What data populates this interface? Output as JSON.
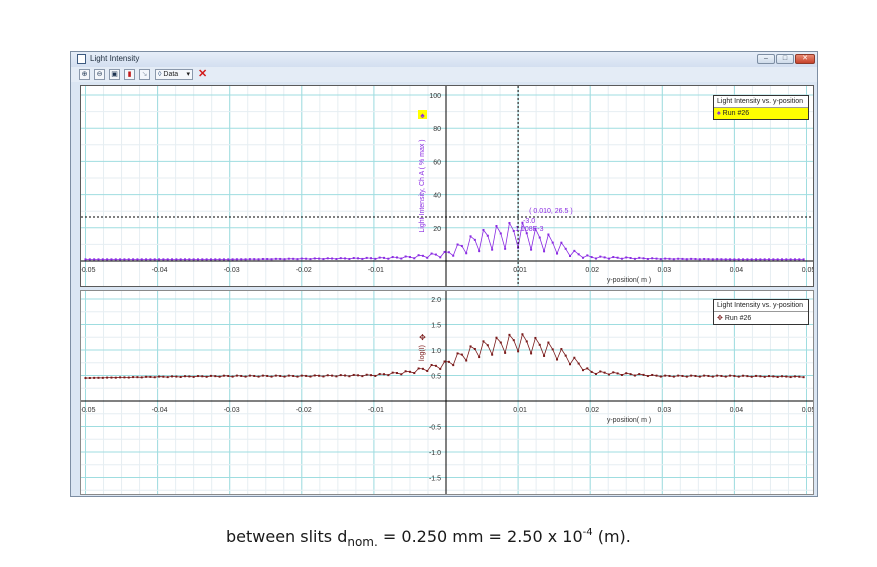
{
  "window": {
    "title": "Light Intensity",
    "controls": {
      "minimize": "–",
      "maximize": "□",
      "close": "✕"
    }
  },
  "toolbar": {
    "buttons": [
      {
        "name": "zoom-in",
        "glyph": "⊕"
      },
      {
        "name": "zoom-out",
        "glyph": "⊖"
      },
      {
        "name": "zoom-select",
        "glyph": "▣"
      },
      {
        "name": "statistics",
        "glyph": "▮"
      },
      {
        "name": "examine",
        "glyph": "↘"
      }
    ],
    "data_label": "Data",
    "data_arrow": "▾",
    "delete_glyph": "✕"
  },
  "top_plot": {
    "legend_title": "Light Intensity vs. y-position",
    "legend_run": "Run #26",
    "legend_run_bg": "#ffff00",
    "ylabel": "Light Intensity, Ch A ( % max )",
    "xlabel": "y-position( m )",
    "cursor_coord": "( 0.010, 26.5 )",
    "delta_label": "-3.0",
    "delta_value": "1.108E-3",
    "series_color": "#8a2be2"
  },
  "bottom_plot": {
    "legend_title": "Light Intensity vs. y-position",
    "legend_run": "Run #26",
    "ylabel": "log(I)",
    "xlabel": "y-position( m )",
    "series_color": "#7a1a1a"
  },
  "chart_data": [
    {
      "type": "line",
      "title": "Light Intensity vs. y-position",
      "xlabel": "y-position( m )",
      "ylabel": "Light Intensity, Ch A ( % max )",
      "xlim": [
        -0.05,
        0.05
      ],
      "ylim": [
        0,
        100
      ],
      "x_ticks": [
        "-0.05",
        "-0.04",
        "-0.03",
        "-0.02",
        "-0.01",
        "0.01",
        "0.02",
        "0.03",
        "0.04",
        "0.05"
      ],
      "y_ticks": [
        "20",
        "40",
        "60",
        "80",
        "100"
      ],
      "grid": true,
      "legend": [
        "Run #26"
      ],
      "annotations": [
        "( 0.010, 26.5 )",
        "-3.0",
        "1.108E-3"
      ],
      "series": [
        {
          "name": "Run #26",
          "x": [
            -0.05,
            -0.04,
            -0.03,
            -0.02,
            -0.01,
            -0.005,
            0.0,
            0.002,
            0.004,
            0.006,
            0.008,
            0.01,
            0.012,
            0.014,
            0.016,
            0.018,
            0.02,
            0.03,
            0.04,
            0.05
          ],
          "y": [
            1,
            1,
            1,
            1.5,
            2,
            3,
            6,
            12,
            18,
            22,
            24,
            26.5,
            22,
            18,
            12,
            6,
            3,
            1.5,
            1,
            1
          ]
        }
      ]
    },
    {
      "type": "line",
      "title": "Light Intensity vs. y-position",
      "xlabel": "y-position( m )",
      "ylabel": "log(I)",
      "xlim": [
        -0.05,
        0.05
      ],
      "ylim": [
        -1.8,
        2.1
      ],
      "x_ticks": [
        "-0.05",
        "-0.04",
        "-0.03",
        "-0.02",
        "-0.01",
        "0.01",
        "0.02",
        "0.03",
        "0.04",
        "0.05"
      ],
      "y_ticks": [
        "-1.5",
        "-1.0",
        "-0.5",
        "0.5",
        "1.0",
        "1.5",
        "2.0"
      ],
      "grid": true,
      "legend": [
        "Run #26"
      ],
      "series": [
        {
          "name": "Run #26",
          "x": [
            -0.05,
            -0.04,
            -0.03,
            -0.02,
            -0.01,
            -0.005,
            0.0,
            0.002,
            0.004,
            0.006,
            0.008,
            0.01,
            0.012,
            0.014,
            0.016,
            0.018,
            0.02,
            0.03,
            0.04,
            0.05
          ],
          "y": [
            0.45,
            0.48,
            0.5,
            0.5,
            0.52,
            0.6,
            0.8,
            1.0,
            1.15,
            1.25,
            1.32,
            1.38,
            1.3,
            1.2,
            1.05,
            0.85,
            0.6,
            0.5,
            0.5,
            0.48
          ]
        }
      ]
    }
  ],
  "caption": {
    "prefix": "between slits d",
    "subscript": "nom.",
    "middle": " = 0.250 mm = 2.50 x 10",
    "superscript": "-4",
    "suffix": " (m)."
  }
}
